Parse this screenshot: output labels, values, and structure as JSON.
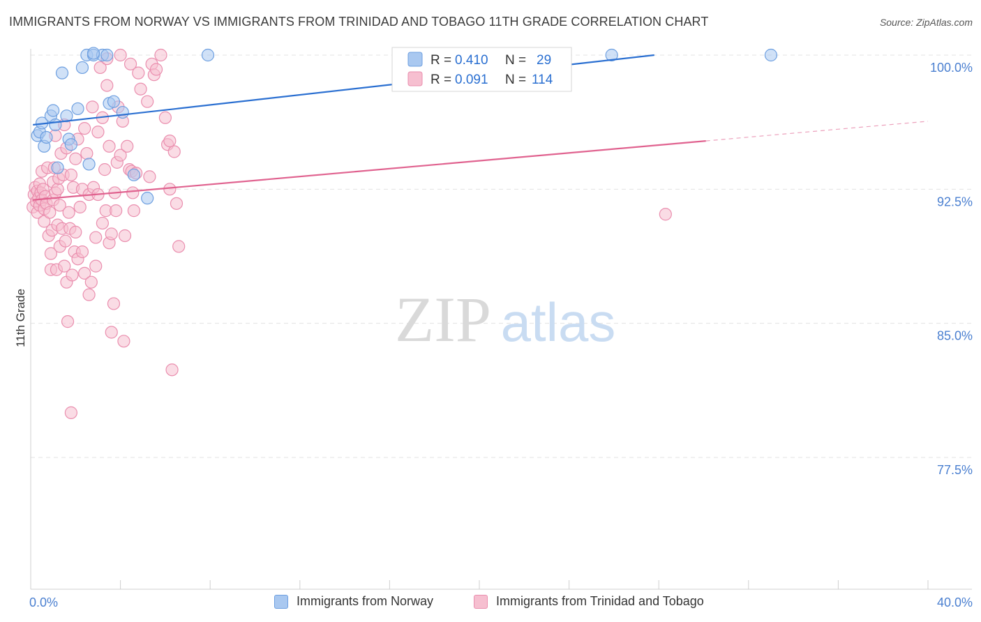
{
  "title": "IMMIGRANTS FROM NORWAY VS IMMIGRANTS FROM TRINIDAD AND TOBAGO 11TH GRADE CORRELATION CHART",
  "source": "Source: ZipAtlas.com",
  "watermark": {
    "zip": "ZIP",
    "atlas": "atlas"
  },
  "colors": {
    "norway_fill": "#a9c8f0",
    "norway_stroke": "#6d9fe0",
    "norway_line": "#2a6fd1",
    "tt_fill": "#f6bfd0",
    "tt_stroke": "#ea8eae",
    "tt_line": "#e0628f",
    "axis_text": "#4a7fd0",
    "grid": "#e3e3e3"
  },
  "stats": [
    {
      "r_label": "R =",
      "r_value": "0.410",
      "n_label": "N =",
      "n_value": "29"
    },
    {
      "r_label": "R =",
      "r_value": "0.091",
      "n_label": "N =",
      "n_value": "114"
    }
  ],
  "chart_data": {
    "type": "scatter",
    "title": "IMMIGRANTS FROM NORWAY VS IMMIGRANTS FROM TRINIDAD AND TOBAGO 11TH GRADE CORRELATION CHART",
    "xlabel": "",
    "ylabel": "11th Grade",
    "xlim": [
      0,
      40
    ],
    "ylim": [
      70.5,
      101.5
    ],
    "x_tick_labels": [
      {
        "value": 0,
        "label": "0.0%"
      },
      {
        "value": 40,
        "label": "40.0%"
      }
    ],
    "y_tick_labels": [
      {
        "value": 100.0,
        "label": "100.0%"
      },
      {
        "value": 92.5,
        "label": "92.5%"
      },
      {
        "value": 85.0,
        "label": "85.0%"
      },
      {
        "value": 77.5,
        "label": "77.5%"
      }
    ],
    "grid": true,
    "legend_position": "bottom-center",
    "series": [
      {
        "name": "Immigrants from Norway",
        "r": 0.41,
        "n": 29,
        "trend": {
          "x0": 0.1,
          "y0": 96.1,
          "x1": 27.8,
          "y1": 100.0,
          "dashed_to_x": null
        },
        "points": [
          [
            0.3,
            95.5
          ],
          [
            0.4,
            95.7
          ],
          [
            0.5,
            96.2
          ],
          [
            0.6,
            94.9
          ],
          [
            0.7,
            95.4
          ],
          [
            0.9,
            96.6
          ],
          [
            1.0,
            96.9
          ],
          [
            1.1,
            96.1
          ],
          [
            1.2,
            93.7
          ],
          [
            1.4,
            99.0
          ],
          [
            1.6,
            96.6
          ],
          [
            1.7,
            95.3
          ],
          [
            1.8,
            95.0
          ],
          [
            2.1,
            97.0
          ],
          [
            2.3,
            99.3
          ],
          [
            2.5,
            100.0
          ],
          [
            2.6,
            93.9
          ],
          [
            2.8,
            100.0
          ],
          [
            3.2,
            100.0
          ],
          [
            3.4,
            100.0
          ],
          [
            3.5,
            97.3
          ],
          [
            3.7,
            97.4
          ],
          [
            4.1,
            96.8
          ],
          [
            4.6,
            93.3
          ],
          [
            5.2,
            92.0
          ],
          [
            7.9,
            100.0
          ],
          [
            25.9,
            100.0
          ],
          [
            33.0,
            100.0
          ],
          [
            2.8,
            100.1
          ]
        ]
      },
      {
        "name": "Immigrants from Trinidad and Tobago",
        "r": 0.091,
        "n": 114,
        "trend": {
          "x0": 0.1,
          "y0": 91.9,
          "x1": 30.1,
          "y1": 95.2,
          "dashed_to_x": 40.0,
          "dashed_to_y": 96.3
        },
        "points": [
          [
            0.1,
            91.5
          ],
          [
            0.15,
            92.2
          ],
          [
            0.2,
            92.6
          ],
          [
            0.25,
            91.8
          ],
          [
            0.3,
            92.4
          ],
          [
            0.3,
            91.2
          ],
          [
            0.35,
            92.0
          ],
          [
            0.4,
            92.8
          ],
          [
            0.4,
            91.6
          ],
          [
            0.45,
            92.3
          ],
          [
            0.5,
            91.9
          ],
          [
            0.5,
            93.5
          ],
          [
            0.55,
            92.5
          ],
          [
            0.6,
            91.4
          ],
          [
            0.6,
            90.7
          ],
          [
            0.65,
            92.1
          ],
          [
            0.7,
            91.7
          ],
          [
            0.75,
            93.7
          ],
          [
            0.8,
            89.9
          ],
          [
            0.85,
            91.2
          ],
          [
            0.9,
            88.9
          ],
          [
            0.9,
            88.0
          ],
          [
            0.95,
            90.2
          ],
          [
            1.0,
            92.9
          ],
          [
            1.0,
            91.9
          ],
          [
            1.05,
            93.7
          ],
          [
            1.1,
            95.5
          ],
          [
            1.1,
            92.3
          ],
          [
            1.15,
            88.0
          ],
          [
            1.2,
            92.5
          ],
          [
            1.2,
            90.5
          ],
          [
            1.25,
            93.1
          ],
          [
            1.3,
            91.6
          ],
          [
            1.3,
            89.3
          ],
          [
            1.35,
            94.5
          ],
          [
            1.4,
            90.3
          ],
          [
            1.45,
            93.3
          ],
          [
            1.5,
            88.2
          ],
          [
            1.5,
            96.1
          ],
          [
            1.55,
            89.6
          ],
          [
            1.6,
            87.3
          ],
          [
            1.6,
            94.8
          ],
          [
            1.65,
            85.1
          ],
          [
            1.7,
            91.2
          ],
          [
            1.75,
            90.3
          ],
          [
            1.8,
            93.3
          ],
          [
            1.8,
            80.0
          ],
          [
            1.85,
            87.7
          ],
          [
            1.9,
            92.6
          ],
          [
            1.95,
            89.0
          ],
          [
            2.0,
            94.2
          ],
          [
            2.0,
            90.1
          ],
          [
            2.1,
            95.3
          ],
          [
            2.1,
            88.6
          ],
          [
            2.2,
            91.5
          ],
          [
            2.3,
            92.5
          ],
          [
            2.3,
            89.0
          ],
          [
            2.4,
            95.9
          ],
          [
            2.4,
            87.8
          ],
          [
            2.5,
            94.5
          ],
          [
            2.6,
            86.6
          ],
          [
            2.6,
            92.2
          ],
          [
            2.7,
            87.3
          ],
          [
            2.75,
            97.1
          ],
          [
            2.8,
            92.6
          ],
          [
            2.9,
            88.2
          ],
          [
            2.9,
            89.8
          ],
          [
            3.0,
            95.7
          ],
          [
            3.0,
            92.2
          ],
          [
            3.1,
            99.3
          ],
          [
            3.2,
            96.5
          ],
          [
            3.2,
            90.6
          ],
          [
            3.3,
            93.6
          ],
          [
            3.35,
            91.3
          ],
          [
            3.4,
            98.3
          ],
          [
            3.5,
            89.5
          ],
          [
            3.5,
            94.9
          ],
          [
            3.6,
            90.0
          ],
          [
            3.6,
            84.5
          ],
          [
            3.7,
            86.1
          ],
          [
            3.75,
            92.3
          ],
          [
            3.8,
            91.3
          ],
          [
            3.85,
            94.0
          ],
          [
            3.9,
            97.1
          ],
          [
            4.0,
            100.0
          ],
          [
            4.0,
            94.4
          ],
          [
            4.1,
            96.3
          ],
          [
            4.15,
            84.0
          ],
          [
            4.2,
            89.9
          ],
          [
            4.3,
            94.9
          ],
          [
            4.4,
            93.6
          ],
          [
            4.45,
            99.5
          ],
          [
            4.5,
            93.5
          ],
          [
            4.55,
            92.3
          ],
          [
            4.6,
            91.3
          ],
          [
            4.7,
            93.4
          ],
          [
            4.8,
            99.0
          ],
          [
            4.9,
            98.1
          ],
          [
            5.2,
            97.4
          ],
          [
            5.4,
            99.5
          ],
          [
            5.3,
            93.2
          ],
          [
            5.5,
            98.9
          ],
          [
            5.6,
            99.2
          ],
          [
            6.0,
            96.5
          ],
          [
            6.1,
            95.0
          ],
          [
            6.2,
            92.5
          ],
          [
            6.3,
            82.4
          ],
          [
            6.4,
            94.6
          ],
          [
            6.5,
            91.7
          ],
          [
            6.6,
            89.3
          ],
          [
            28.3,
            91.1
          ],
          [
            6.2,
            95.2
          ],
          [
            3.4,
            99.8
          ],
          [
            5.8,
            100.0
          ]
        ]
      }
    ]
  },
  "legend": [
    {
      "label": "Immigrants from Norway"
    },
    {
      "label": "Immigrants from Trinidad and Tobago"
    }
  ]
}
